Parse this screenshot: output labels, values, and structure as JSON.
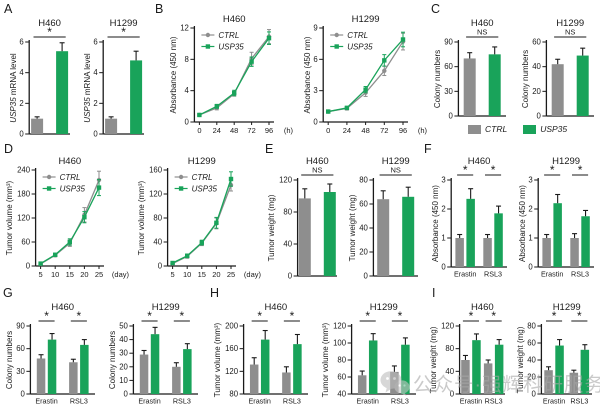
{
  "colors": {
    "series": {
      "CTRL": "#8E8E8E",
      "USP35": "#19A35A"
    },
    "axis": "#1a1a1a",
    "text": "#1a1a1a"
  },
  "panels": [
    {
      "label": "A"
    },
    {
      "label": "B"
    },
    {
      "label": "C"
    },
    {
      "label": "D"
    },
    {
      "label": "E"
    },
    {
      "label": "F"
    },
    {
      "label": "G"
    },
    {
      "label": "H"
    },
    {
      "label": "I"
    }
  ],
  "shared_legend": {
    "items": [
      {
        "label": "CTRL",
        "series": "CTRL"
      },
      {
        "label": "USP35",
        "series": "USP35"
      }
    ]
  },
  "watermark": {
    "text": "公众号·强辉科研服务",
    "icon": "wechat-icon"
  },
  "chart_data": [
    {
      "panel": "A",
      "title": "H460",
      "type": "bar",
      "ylabel": [
        {
          "t": "USP35",
          "i": true
        },
        {
          "t": " mRNA level"
        }
      ],
      "ylim": [
        0,
        6
      ],
      "yticks": [
        0,
        2,
        4,
        6
      ],
      "groups": [
        {
          "label": "",
          "sig": "*",
          "bars": [
            {
              "series": "CTRL",
              "value": 1.0,
              "err": 0.12
            },
            {
              "series": "USP35",
              "value": 5.4,
              "err": 0.55
            }
          ]
        }
      ]
    },
    {
      "panel": "A",
      "title": "H1299",
      "type": "bar",
      "ylabel": [
        {
          "t": "USP35",
          "i": true
        },
        {
          "t": " mRNA level"
        }
      ],
      "ylim": [
        0,
        6
      ],
      "yticks": [
        0,
        2,
        4,
        6
      ],
      "groups": [
        {
          "label": "",
          "sig": "*",
          "bars": [
            {
              "series": "CTRL",
              "value": 1.0,
              "err": 0.12
            },
            {
              "series": "USP35",
              "value": 4.8,
              "err": 0.6
            }
          ]
        }
      ]
    },
    {
      "panel": "B",
      "title": "H460",
      "type": "line",
      "ylabel": "Absorbance (450 nm)",
      "ylim": [
        0,
        12
      ],
      "yticks": [
        0,
        4,
        8,
        12
      ],
      "x": [
        0,
        24,
        48,
        72,
        96
      ],
      "x_suffix": "(h)",
      "legend": true,
      "series": [
        {
          "name": "CTRL",
          "marker": "circle",
          "values": [
            0.9,
            1.8,
            3.6,
            8.1,
            10.9
          ],
          "errors": [
            0.15,
            0.25,
            0.3,
            0.8,
            0.9
          ]
        },
        {
          "name": "USP35",
          "marker": "square",
          "values": [
            0.9,
            2.0,
            3.7,
            7.7,
            10.7
          ],
          "errors": [
            0.15,
            0.25,
            0.35,
            0.6,
            0.8
          ]
        }
      ]
    },
    {
      "panel": "B",
      "title": "H1299",
      "type": "line",
      "ylabel": "Absorbance (450 nm)",
      "ylim": [
        0,
        9
      ],
      "yticks": [
        0,
        3,
        6,
        9
      ],
      "x": [
        0,
        24,
        48,
        72,
        96
      ],
      "x_suffix": "(h)",
      "legend": true,
      "series": [
        {
          "name": "CTRL",
          "marker": "circle",
          "values": [
            1.0,
            1.3,
            2.8,
            4.9,
            7.7
          ],
          "errors": [
            0.1,
            0.15,
            0.35,
            0.45,
            0.8
          ]
        },
        {
          "name": "USP35",
          "marker": "square",
          "values": [
            1.0,
            1.35,
            3.1,
            5.9,
            7.9
          ],
          "errors": [
            0.1,
            0.15,
            0.3,
            0.55,
            0.7
          ]
        }
      ]
    },
    {
      "panel": "C",
      "title": "H460",
      "type": "bar",
      "ylabel": "Colony numbers",
      "ylim": [
        0,
        90
      ],
      "yticks": [
        0,
        30,
        60,
        90
      ],
      "groups": [
        {
          "label": "",
          "sig": "NS",
          "bars": [
            {
              "series": "CTRL",
              "value": 70,
              "err": 7
            },
            {
              "series": "USP35",
              "value": 75,
              "err": 9
            }
          ]
        }
      ]
    },
    {
      "panel": "C",
      "title": "H1299",
      "type": "bar",
      "ylabel": "Colony numbers",
      "ylim": [
        0,
        60
      ],
      "yticks": [
        0,
        20,
        40,
        60
      ],
      "groups": [
        {
          "label": "",
          "sig": "NS",
          "bars": [
            {
              "series": "CTRL",
              "value": 42,
              "err": 4
            },
            {
              "series": "USP35",
              "value": 49,
              "err": 6
            }
          ]
        }
      ]
    },
    {
      "panel": "D",
      "title": "H460",
      "type": "line",
      "ylabel": "Tumor volume (mm³)",
      "ylim": [
        0,
        240
      ],
      "yticks": [
        0,
        60,
        120,
        180,
        240
      ],
      "x": [
        5,
        10,
        15,
        20,
        25
      ],
      "x_suffix": "(day)",
      "legend": true,
      "series": [
        {
          "name": "CTRL",
          "marker": "circle",
          "values": [
            5,
            27,
            57,
            128,
            215
          ],
          "errors": [
            2,
            4,
            8,
            18,
            22
          ]
        },
        {
          "name": "USP35",
          "marker": "square",
          "values": [
            6,
            28,
            60,
            122,
            196
          ],
          "errors": [
            2,
            4,
            8,
            14,
            20
          ]
        }
      ]
    },
    {
      "panel": "D",
      "title": "H1299",
      "type": "line",
      "ylabel": "Tumor volume (mm³)",
      "ylim": [
        0,
        160
      ],
      "yticks": [
        0,
        40,
        80,
        120,
        160
      ],
      "x": [
        5,
        10,
        15,
        20,
        25
      ],
      "x_suffix": "(day)",
      "legend": true,
      "series": [
        {
          "name": "CTRL",
          "marker": "circle",
          "values": [
            4,
            16,
            38,
            71,
            135
          ],
          "errors": [
            1.5,
            3,
            4,
            9,
            10
          ]
        },
        {
          "name": "USP35",
          "marker": "square",
          "values": [
            5,
            17,
            39,
            72,
            145
          ],
          "errors": [
            1.5,
            3,
            4,
            9,
            12
          ]
        }
      ]
    },
    {
      "panel": "E",
      "title": "H460",
      "type": "bar",
      "ylabel": "Tumor weight (mg)",
      "ylim": [
        0,
        120
      ],
      "yticks": [
        0,
        40,
        80,
        120
      ],
      "groups": [
        {
          "label": "",
          "sig": "NS",
          "bars": [
            {
              "series": "CTRL",
              "value": 97,
              "err": 12
            },
            {
              "series": "USP35",
              "value": 105,
              "err": 10
            }
          ]
        }
      ]
    },
    {
      "panel": "E",
      "title": "H1299",
      "type": "bar",
      "ylabel": "Tumor weight (mg)",
      "ylim": [
        0,
        80
      ],
      "yticks": [
        0,
        20,
        40,
        60,
        80
      ],
      "groups": [
        {
          "label": "",
          "sig": "NS",
          "bars": [
            {
              "series": "CTRL",
              "value": 64,
              "err": 7
            },
            {
              "series": "USP35",
              "value": 66,
              "err": 8
            }
          ]
        }
      ]
    },
    {
      "panel": "F",
      "title": "H460",
      "type": "bar",
      "ylabel": "Absorbance (450 nm)",
      "ylim": [
        0,
        3
      ],
      "yticks": [
        0,
        1,
        2,
        3
      ],
      "groups": [
        {
          "label": "Erastin",
          "sig": "*",
          "bars": [
            {
              "series": "CTRL",
              "value": 1.0,
              "err": 0.12
            },
            {
              "series": "USP35",
              "value": 2.35,
              "err": 0.35
            }
          ]
        },
        {
          "label": "RSL3",
          "sig": "*",
          "bars": [
            {
              "series": "CTRL",
              "value": 1.0,
              "err": 0.12
            },
            {
              "series": "USP35",
              "value": 1.85,
              "err": 0.25
            }
          ]
        }
      ]
    },
    {
      "panel": "F",
      "title": "H1299",
      "type": "bar",
      "ylabel": "Absorbance (450 nm)",
      "ylim": [
        0,
        3
      ],
      "yticks": [
        0,
        1,
        2,
        3
      ],
      "groups": [
        {
          "label": "Erastin",
          "sig": "*",
          "bars": [
            {
              "series": "CTRL",
              "value": 1.0,
              "err": 0.12
            },
            {
              "series": "USP35",
              "value": 2.2,
              "err": 0.3
            }
          ]
        },
        {
          "label": "RSL3",
          "sig": "*",
          "bars": [
            {
              "series": "CTRL",
              "value": 1.0,
              "err": 0.15
            },
            {
              "series": "USP35",
              "value": 1.75,
              "err": 0.2
            }
          ]
        }
      ]
    },
    {
      "panel": "G",
      "title": "H460",
      "type": "bar",
      "ylabel": "Colony numbers",
      "ylim": [
        0,
        90
      ],
      "yticks": [
        0,
        30,
        60,
        90
      ],
      "groups": [
        {
          "label": "Erastin",
          "sig": "*",
          "bars": [
            {
              "series": "CTRL",
              "value": 47,
              "err": 5
            },
            {
              "series": "USP35",
              "value": 72,
              "err": 8
            }
          ]
        },
        {
          "label": "RSL3",
          "sig": "*",
          "bars": [
            {
              "series": "CTRL",
              "value": 42,
              "err": 4
            },
            {
              "series": "USP35",
              "value": 65,
              "err": 7
            }
          ]
        }
      ]
    },
    {
      "panel": "G",
      "title": "H1299",
      "type": "bar",
      "ylabel": "Colony numbers",
      "ylim": [
        0,
        50
      ],
      "yticks": [
        0,
        10,
        20,
        30,
        40,
        50
      ],
      "groups": [
        {
          "label": "Erastin",
          "sig": "*",
          "bars": [
            {
              "series": "CTRL",
              "value": 29,
              "err": 3
            },
            {
              "series": "USP35",
              "value": 44,
              "err": 5
            }
          ]
        },
        {
          "label": "RSL3",
          "sig": "*",
          "bars": [
            {
              "series": "CTRL",
              "value": 20,
              "err": 3
            },
            {
              "series": "USP35",
              "value": 33,
              "err": 4
            }
          ]
        }
      ]
    },
    {
      "panel": "H",
      "title": "H460",
      "type": "bar",
      "ylabel": "Tumor volume (mm³)",
      "ylim": [
        80,
        200
      ],
      "yticks": [
        80,
        120,
        160,
        200
      ],
      "groups": [
        {
          "label": "Erastin",
          "sig": "*",
          "bars": [
            {
              "series": "CTRL",
              "value": 132,
              "err": 12
            },
            {
              "series": "USP35",
              "value": 176,
              "err": 16
            }
          ]
        },
        {
          "label": "RSL3",
          "sig": "*",
          "bars": [
            {
              "series": "CTRL",
              "value": 118,
              "err": 10
            },
            {
              "series": "USP35",
              "value": 168,
              "err": 17
            }
          ]
        }
      ]
    },
    {
      "panel": "H",
      "title": "H1299",
      "type": "bar",
      "ylabel": "Tumor volume (mm³)",
      "ylim": [
        40,
        120
      ],
      "yticks": [
        40,
        60,
        80,
        100,
        120
      ],
      "groups": [
        {
          "label": "Erastin",
          "sig": "*",
          "bars": [
            {
              "series": "CTRL",
              "value": 62,
              "err": 5
            },
            {
              "series": "USP35",
              "value": 103,
              "err": 8
            }
          ]
        },
        {
          "label": "RSL3",
          "sig": "*",
          "bars": [
            {
              "series": "CTRL",
              "value": 66,
              "err": 7
            },
            {
              "series": "USP35",
              "value": 98,
              "err": 8
            }
          ]
        }
      ]
    },
    {
      "panel": "I",
      "title": "H460",
      "type": "bar",
      "ylabel": "Tumor weight (mg)",
      "ylim": [
        0,
        120
      ],
      "yticks": [
        0,
        40,
        80,
        120
      ],
      "groups": [
        {
          "label": "Erastin",
          "sig": "*",
          "bars": [
            {
              "series": "CTRL",
              "value": 60,
              "err": 8
            },
            {
              "series": "USP35",
              "value": 95,
              "err": 11
            }
          ]
        },
        {
          "label": "RSL3",
          "sig": "*",
          "bars": [
            {
              "series": "CTRL",
              "value": 54,
              "err": 6
            },
            {
              "series": "USP35",
              "value": 87,
              "err": 9
            }
          ]
        }
      ]
    },
    {
      "panel": "I",
      "title": "H1299",
      "type": "bar",
      "ylabel": "Tumor weight (mg)",
      "ylim": [
        0,
        80
      ],
      "yticks": [
        0,
        20,
        40,
        60,
        80
      ],
      "groups": [
        {
          "label": "Erastin",
          "sig": "*",
          "bars": [
            {
              "series": "CTRL",
              "value": 28,
              "err": 4
            },
            {
              "series": "USP35",
              "value": 57,
              "err": 7
            }
          ]
        },
        {
          "label": "RSL3",
          "sig": "*",
          "bars": [
            {
              "series": "CTRL",
              "value": 25,
              "err": 3
            },
            {
              "series": "USP35",
              "value": 52,
              "err": 6
            }
          ]
        }
      ]
    }
  ]
}
